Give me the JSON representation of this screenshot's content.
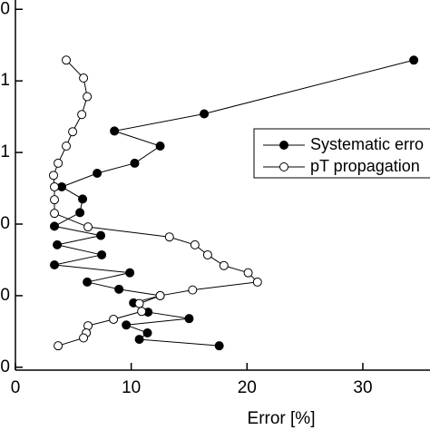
{
  "chart_data": {
    "type": "line",
    "x_label": "Error [%]",
    "xlim": [
      0,
      35.8
    ],
    "xticks": [
      0,
      10,
      20,
      30
    ],
    "ylim": [
      -0.04,
      5.13
    ],
    "yticks": [
      {
        "value": 0,
        "label": "0"
      },
      {
        "value": 1,
        "label": "0"
      },
      {
        "value": 2,
        "label": "0"
      },
      {
        "value": 3,
        "label": "1"
      },
      {
        "value": 4,
        "label": "1"
      },
      {
        "value": 5,
        "label": "0"
      }
    ],
    "series": [
      {
        "name": "Systematic erro",
        "color": "#000000",
        "marker": "filled",
        "x": [
          34.4,
          16.3,
          8.55,
          12.5,
          10.3,
          7.06,
          4.0,
          5.8,
          5.57,
          3.37,
          7.37,
          3.61,
          7.45,
          3.37,
          9.88,
          6.2,
          8.94,
          12.5,
          10.2,
          11.45,
          15.0,
          9.57,
          11.4,
          10.7,
          17.6
        ],
        "values": [
          4.29,
          3.54,
          3.3,
          3.09,
          2.85,
          2.71,
          2.52,
          2.35,
          2.16,
          1.97,
          1.84,
          1.71,
          1.57,
          1.43,
          1.32,
          1.19,
          1.09,
          1.0,
          0.9,
          0.77,
          0.68,
          0.59,
          0.48,
          0.39,
          0.3
        ]
      },
      {
        "name": "pT propagation",
        "color": "#000000",
        "marker": "open",
        "x": [
          4.39,
          5.88,
          6.2,
          5.73,
          4.94,
          4.39,
          3.69,
          3.29,
          3.37,
          3.37,
          3.37,
          6.27,
          13.3,
          15.5,
          16.6,
          18.0,
          20.1,
          20.9,
          15.3,
          12.5,
          10.7,
          10.9,
          8.47,
          6.27,
          6.12,
          5.88,
          3.69
        ],
        "values": [
          4.29,
          4.04,
          3.78,
          3.53,
          3.29,
          3.09,
          2.85,
          2.68,
          2.52,
          2.34,
          2.15,
          1.96,
          1.82,
          1.71,
          1.57,
          1.42,
          1.32,
          1.19,
          1.08,
          1.0,
          0.89,
          0.78,
          0.67,
          0.58,
          0.48,
          0.41,
          0.3
        ]
      }
    ]
  }
}
